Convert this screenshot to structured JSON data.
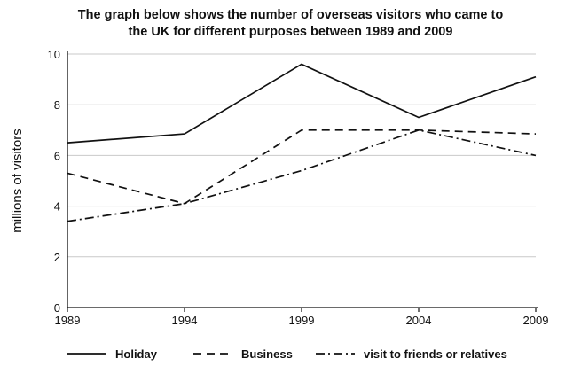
{
  "chart_data": {
    "type": "line",
    "title_lines": [
      "The graph below shows the number of overseas visitors who came to",
      "the UK for different purposes between 1989 and 2009"
    ],
    "xlabel": "",
    "ylabel": "millions of visitors",
    "x": [
      "1989",
      "1994",
      "1999",
      "2004",
      "2009"
    ],
    "ylim": [
      0,
      10
    ],
    "yticks": [
      "0",
      "2",
      "4",
      "6",
      "8",
      "10"
    ],
    "grid": "horizontal",
    "legend_position": "bottom",
    "series": [
      {
        "name": "Holiday",
        "values": [
          6.5,
          6.85,
          9.6,
          7.5,
          9.1
        ],
        "line_style": "solid",
        "color": "#111111"
      },
      {
        "name": "Business",
        "values": [
          5.3,
          4.1,
          7.0,
          7.0,
          6.85
        ],
        "line_style": "dashed",
        "color": "#111111"
      },
      {
        "name": "visit to friends or relatives",
        "values": [
          3.4,
          4.1,
          5.4,
          7.0,
          6.0
        ],
        "line_style": "dash-dot",
        "color": "#111111"
      }
    ]
  }
}
